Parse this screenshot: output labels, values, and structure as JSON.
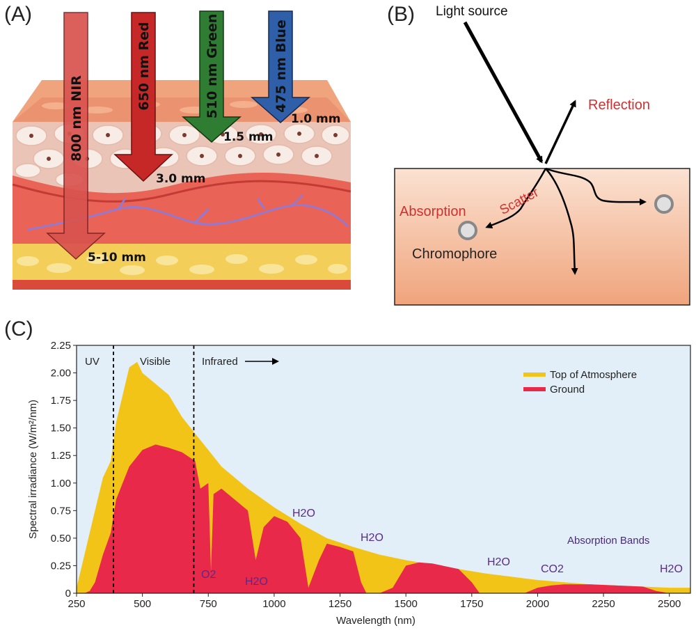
{
  "panel_a": {
    "label": "(A)",
    "arrows": [
      {
        "text": "800 nm NIR",
        "color": "#d9534f"
      },
      {
        "text": "650 nm Red",
        "color": "#c62828"
      },
      {
        "text": "510 nm Green",
        "color": "#2e7d32"
      },
      {
        "text": "475 nm Blue",
        "color": "#2f5fa8"
      }
    ],
    "depths": [
      "1.0 mm",
      "1.5 mm",
      "3.0 mm",
      "5-10 mm"
    ]
  },
  "panel_b": {
    "label": "(B)",
    "light_source": "Light source",
    "reflection": "Reflection",
    "scatter": "Scatter",
    "absorption": "Absorption",
    "chromophore": "Chromophore"
  },
  "panel_c": {
    "label": "(C)",
    "region_uv": "UV",
    "region_visible": "Visible",
    "region_infrared": "Infrared",
    "absorption_bands": "Absorption Bands",
    "molecule_labels": [
      "O2",
      "H2O",
      "H2O",
      "H2O",
      "H2O",
      "CO2",
      "H2O"
    ],
    "colors": {
      "top_of_atmosphere": "#f2c417",
      "ground": "#e8294a",
      "background": "#e2eff8"
    }
  },
  "chart_data": {
    "type": "area",
    "xlabel": "Wavelength (nm)",
    "ylabel": "Spectral irradiance (W/m²/nm)",
    "xlim": [
      250,
      2580
    ],
    "ylim": [
      0,
      2.25
    ],
    "xticks": [
      "250",
      "500",
      "750",
      "1000",
      "1250",
      "1500",
      "1750",
      "2000",
      "2250",
      "2500"
    ],
    "yticks": [
      "0",
      "0.25",
      "0.50",
      "0.75",
      "1.00",
      "1.25",
      "1.50",
      "1.75",
      "2.00",
      "2.25"
    ],
    "legend_position": "top-right",
    "series": [
      {
        "name": "Top of Atmosphere",
        "x": [
          250,
          280,
          300,
          320,
          350,
          380,
          400,
          420,
          450,
          480,
          500,
          550,
          600,
          650,
          700,
          750,
          800,
          900,
          1000,
          1100,
          1200,
          1300,
          1400,
          1500,
          1600,
          1700,
          1800,
          1900,
          2000,
          2100,
          2200,
          2300,
          2400,
          2500,
          2580
        ],
        "y": [
          0.05,
          0.35,
          0.55,
          0.75,
          1.05,
          1.2,
          1.55,
          1.75,
          2.05,
          2.1,
          2.0,
          1.9,
          1.8,
          1.6,
          1.45,
          1.3,
          1.15,
          0.95,
          0.78,
          0.63,
          0.5,
          0.42,
          0.35,
          0.3,
          0.26,
          0.22,
          0.18,
          0.15,
          0.12,
          0.1,
          0.08,
          0.07,
          0.06,
          0.05,
          0.05
        ]
      },
      {
        "name": "Ground",
        "x": [
          280,
          300,
          320,
          350,
          380,
          400,
          450,
          500,
          550,
          600,
          650,
          700,
          720,
          750,
          760,
          770,
          800,
          900,
          930,
          960,
          1000,
          1050,
          1100,
          1130,
          1170,
          1200,
          1250,
          1300,
          1330,
          1350,
          1400,
          1450,
          1500,
          1550,
          1600,
          1700,
          1750,
          1780,
          1800,
          1950,
          2000,
          2050,
          2100,
          2200,
          2300,
          2400,
          2450,
          2500,
          2580
        ],
        "y": [
          0,
          0.02,
          0.1,
          0.35,
          0.55,
          0.85,
          1.15,
          1.3,
          1.35,
          1.32,
          1.28,
          1.2,
          0.95,
          1.0,
          0.2,
          0.9,
          0.95,
          0.75,
          0.3,
          0.6,
          0.7,
          0.65,
          0.5,
          0.05,
          0.3,
          0.45,
          0.42,
          0.38,
          0.1,
          0,
          0,
          0.05,
          0.25,
          0.28,
          0.27,
          0.22,
          0.1,
          0,
          0,
          0,
          0.05,
          0.07,
          0.08,
          0.08,
          0.07,
          0.06,
          0.02,
          0,
          0
        ]
      }
    ]
  }
}
